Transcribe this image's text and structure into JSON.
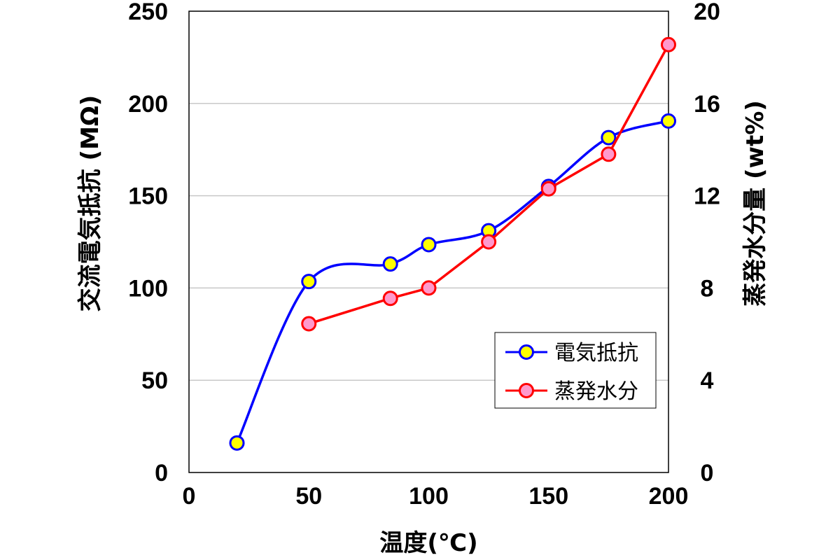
{
  "chart_data": {
    "type": "line",
    "xlabel": "温度(℃)",
    "ylabel": "交流電気抵抗 (MΩ)",
    "y2label": "蒸発水分量 (wt%)",
    "xlim": [
      0,
      200
    ],
    "ylim": [
      0,
      250
    ],
    "y2lim": [
      0,
      20
    ],
    "xticks": [
      "0",
      "50",
      "100",
      "150",
      "200"
    ],
    "yticks": [
      "0",
      "50",
      "100",
      "150",
      "200",
      "250"
    ],
    "y2ticks": [
      "0",
      "4",
      "8",
      "12",
      "16",
      "20"
    ],
    "grid": "horizontal",
    "legend_position": "lower-right",
    "series": [
      {
        "name": "電気抵抗",
        "axis": "left",
        "line_color": "#0000ff",
        "marker_fill": "#ffff00",
        "marker_edge": "#0000ff",
        "smooth": true,
        "x": [
          20,
          50,
          84,
          100,
          125,
          150,
          175,
          200
        ],
        "y": [
          16,
          103.5,
          113,
          123.5,
          131,
          155,
          181.5,
          190.5
        ]
      },
      {
        "name": "蒸発水分",
        "axis": "right",
        "line_color": "#ff0000",
        "marker_fill": "#ff99cc",
        "marker_edge": "#ff0000",
        "smooth": false,
        "x": [
          50,
          84,
          100,
          125,
          150,
          175,
          200
        ],
        "y": [
          6.45,
          7.55,
          8.0,
          10.0,
          12.3,
          13.8,
          18.55
        ]
      }
    ]
  }
}
